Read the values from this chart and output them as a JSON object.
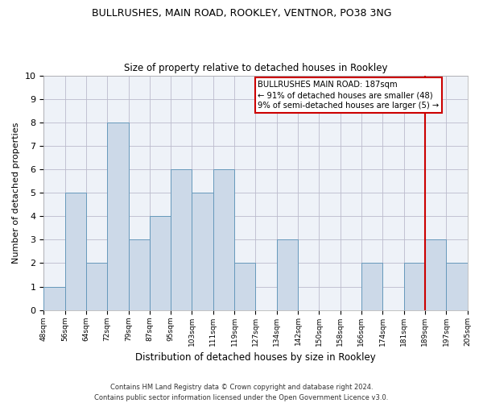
{
  "title1": "BULLRUSHES, MAIN ROAD, ROOKLEY, VENTNOR, PO38 3NG",
  "title2": "Size of property relative to detached houses in Rookley",
  "xlabel": "Distribution of detached houses by size in Rookley",
  "ylabel": "Number of detached properties",
  "categories": [
    "48sqm",
    "56sqm",
    "64sqm",
    "72sqm",
    "79sqm",
    "87sqm",
    "95sqm",
    "103sqm",
    "111sqm",
    "119sqm",
    "127sqm",
    "134sqm",
    "142sqm",
    "150sqm",
    "158sqm",
    "166sqm",
    "174sqm",
    "181sqm",
    "189sqm",
    "197sqm",
    "205sqm"
  ],
  "values": [
    1,
    5,
    2,
    8,
    3,
    4,
    6,
    5,
    6,
    2,
    0,
    3,
    0,
    0,
    0,
    2,
    0,
    2,
    3,
    2,
    0
  ],
  "bar_color": "#ccd9e8",
  "bar_edge_color": "#6699bb",
  "grid_color": "#bbbbcc",
  "vline_color": "#cc0000",
  "annotation_text": "BULLRUSHES MAIN ROAD: 187sqm\n← 91% of detached houses are smaller (48)\n9% of semi-detached houses are larger (5) →",
  "annotation_box_color": "#cc0000",
  "ylim": [
    0,
    10
  ],
  "yticks": [
    0,
    1,
    2,
    3,
    4,
    5,
    6,
    7,
    8,
    9,
    10
  ],
  "footer": "Contains HM Land Registry data © Crown copyright and database right 2024.\nContains public sector information licensed under the Open Government Licence v3.0.",
  "bg_color": "#eef2f8"
}
